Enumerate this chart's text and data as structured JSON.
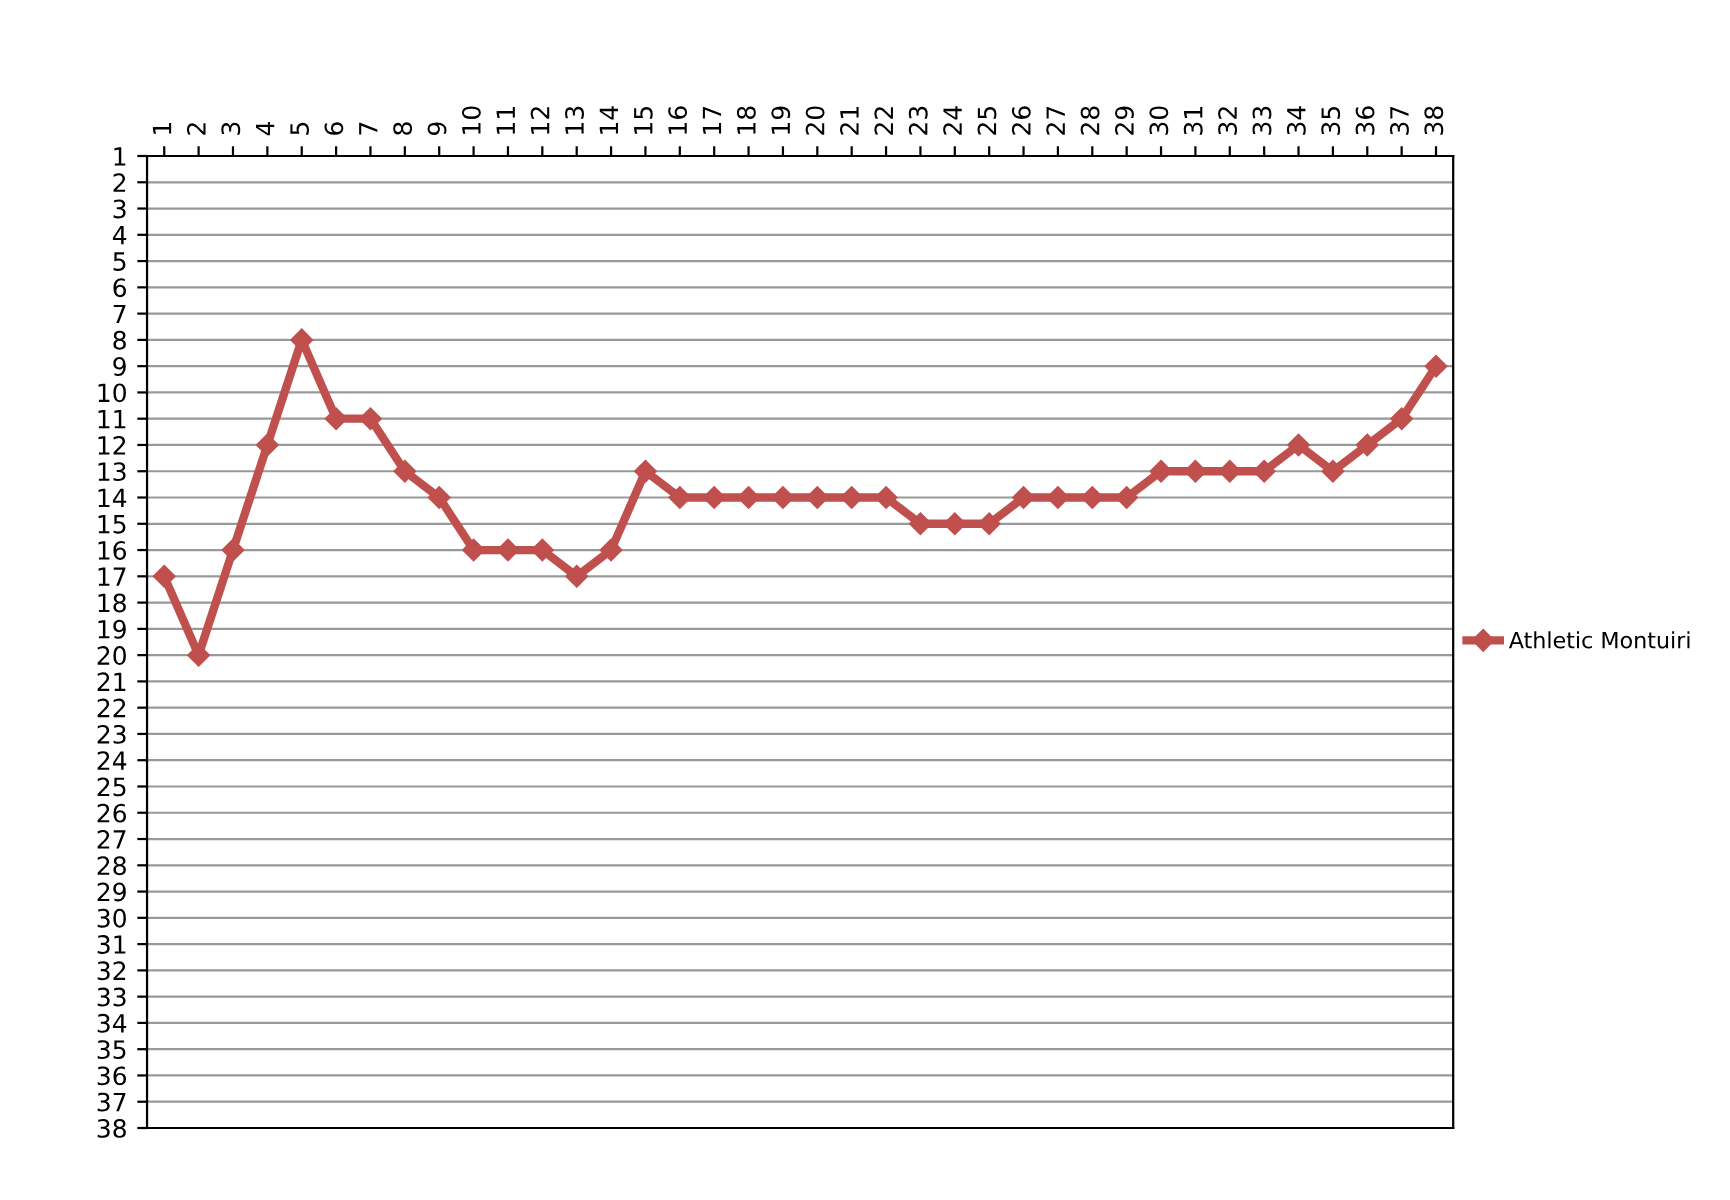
{
  "chart_data": {
    "type": "line",
    "categories": [
      "1",
      "2",
      "3",
      "4",
      "5",
      "6",
      "7",
      "8",
      "9",
      "10",
      "11",
      "12",
      "13",
      "14",
      "15",
      "16",
      "17",
      "18",
      "19",
      "20",
      "21",
      "22",
      "23",
      "24",
      "25",
      "26",
      "27",
      "28",
      "29",
      "30",
      "31",
      "32",
      "33",
      "34",
      "35",
      "36",
      "37",
      "38"
    ],
    "series": [
      {
        "name": "Athletic Montuiri",
        "color": "#c0504d",
        "values": [
          17,
          20,
          16,
          12,
          8,
          11,
          11,
          13,
          14,
          16,
          16,
          16,
          17,
          16,
          13,
          14,
          14,
          14,
          14,
          14,
          14,
          14,
          15,
          15,
          15,
          14,
          14,
          14,
          14,
          13,
          13,
          13,
          13,
          12,
          13,
          12,
          11,
          9
        ]
      }
    ],
    "ylim": [
      38,
      1
    ],
    "yticks": [
      1,
      2,
      3,
      4,
      5,
      6,
      7,
      8,
      9,
      10,
      11,
      12,
      13,
      14,
      15,
      16,
      17,
      18,
      19,
      20,
      21,
      22,
      23,
      24,
      25,
      26,
      27,
      28,
      29,
      30,
      31,
      32,
      33,
      34,
      35,
      36,
      37,
      38
    ],
    "grid": "y",
    "legend": "right",
    "marker": "diamond",
    "line_style": "solid"
  }
}
